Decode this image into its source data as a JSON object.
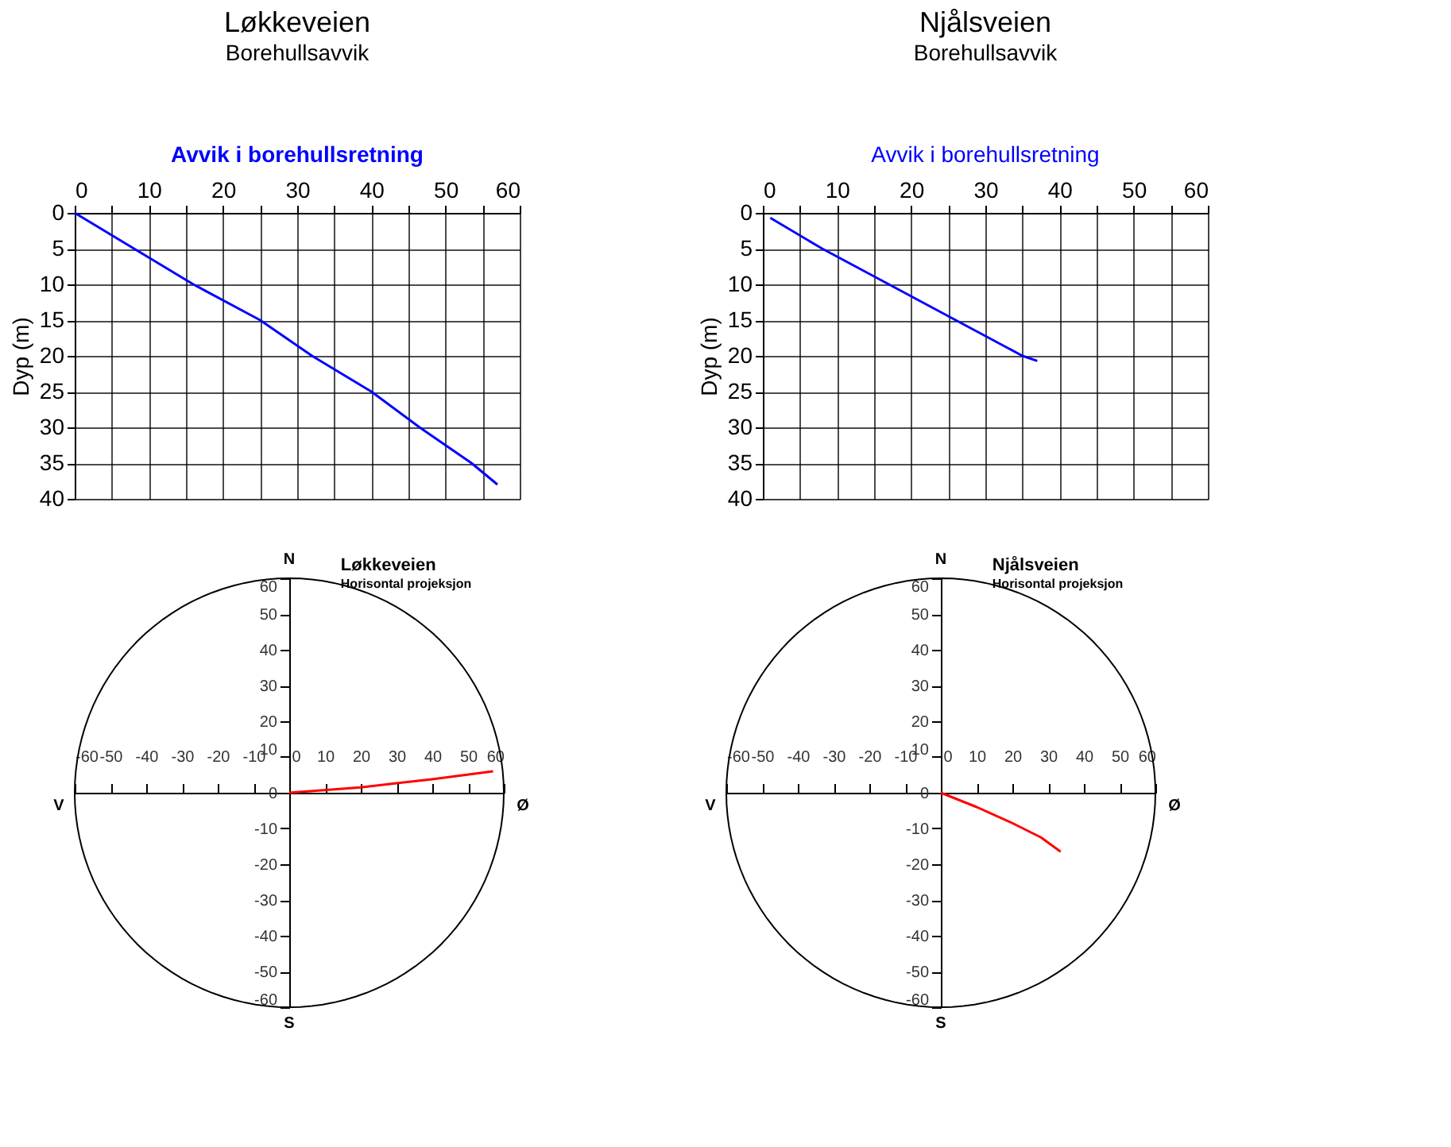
{
  "chart_data": [
    {
      "type": "line",
      "title": "Løkkeveien",
      "subtitle": "Borehullsavvik",
      "annotations": [
        "Avvik i borehullsretning"
      ],
      "ylabel": "Dyp  (m)",
      "series": [
        {
          "color": "#0000ff",
          "x": [
            0,
            8,
            16,
            25,
            32,
            40,
            46.5,
            53.5,
            57
          ],
          "values": [
            0,
            5,
            10,
            15,
            20,
            25,
            30,
            35,
            38
          ]
        }
      ],
      "xlim": [
        0,
        60
      ],
      "xticks": [
        0,
        {
          "value": 5,
          "label": null
        },
        10,
        {
          "value": 15,
          "label": null
        },
        20,
        {
          "value": 25,
          "label": null
        },
        30,
        {
          "value": 35,
          "label": null
        },
        40,
        {
          "value": 45,
          "label": null
        },
        50,
        {
          "value": 55,
          "label": null
        },
        60
      ],
      "ylim": [
        40,
        0
      ],
      "yticks": [
        0,
        5,
        10,
        15,
        20,
        25,
        30,
        35,
        40
      ],
      "grid": true
    },
    {
      "type": "line",
      "title": "Njålsveien",
      "subtitle": "Borehullsavvik",
      "annotations": [
        "Avvik i borehullsretning"
      ],
      "ylabel": "Dyp  (m)",
      "series": [
        {
          "color": "#0000ff",
          "x": [
            1,
            8,
            17,
            26,
            35,
            37
          ],
          "values": [
            0.7,
            5,
            10,
            15,
            20,
            20.7
          ]
        }
      ],
      "xlim": [
        0,
        60
      ],
      "xticks": [
        0,
        {
          "value": 5,
          "label": null
        },
        10,
        {
          "value": 15,
          "label": null
        },
        20,
        {
          "value": 25,
          "label": null
        },
        30,
        {
          "value": 35,
          "label": null
        },
        40,
        {
          "value": 45,
          "label": null
        },
        50,
        {
          "value": 55,
          "label": null
        },
        60
      ],
      "ylim": [
        40,
        0
      ],
      "yticks": [
        0,
        5,
        10,
        15,
        20,
        25,
        30,
        35,
        40
      ],
      "grid": true
    },
    {
      "type": "line",
      "title": "Løkkeveien",
      "subtitle": "Horisontal projeksjon",
      "annotations": [
        "N",
        "S",
        "V",
        "Ø"
      ],
      "series": [
        {
          "color": "#ff0000",
          "x": [
            0,
            20,
            40,
            57
          ],
          "values": [
            0,
            1.5,
            3.8,
            6
          ]
        }
      ],
      "xlim": [
        -60,
        60
      ],
      "xticks": [
        -60,
        -50,
        -40,
        -30,
        -20,
        -10,
        0,
        10,
        20,
        30,
        40,
        50,
        60
      ],
      "ylim": [
        -60,
        60
      ],
      "yticks": [
        -60,
        -50,
        -40,
        -30,
        -20,
        -10,
        0,
        10,
        20,
        30,
        40,
        50,
        60
      ]
    },
    {
      "type": "line",
      "title": "Njålsveien",
      "subtitle": "Horisontal projeksjon",
      "annotations": [
        "N",
        "S",
        "V",
        "Ø"
      ],
      "series": [
        {
          "color": "#ff0000",
          "x": [
            0,
            10,
            20,
            28,
            33.5
          ],
          "values": [
            0,
            -4,
            -8.5,
            -12.5,
            -16.5
          ]
        }
      ],
      "xlim": [
        -60,
        60
      ],
      "xticks": [
        -60,
        -50,
        -40,
        -30,
        -20,
        -10,
        0,
        10,
        20,
        30,
        40,
        50,
        60
      ],
      "ylim": [
        -60,
        60
      ],
      "yticks": [
        -60,
        -50,
        -40,
        -30,
        -20,
        -10,
        0,
        10,
        20,
        30,
        40,
        50,
        60
      ]
    }
  ]
}
